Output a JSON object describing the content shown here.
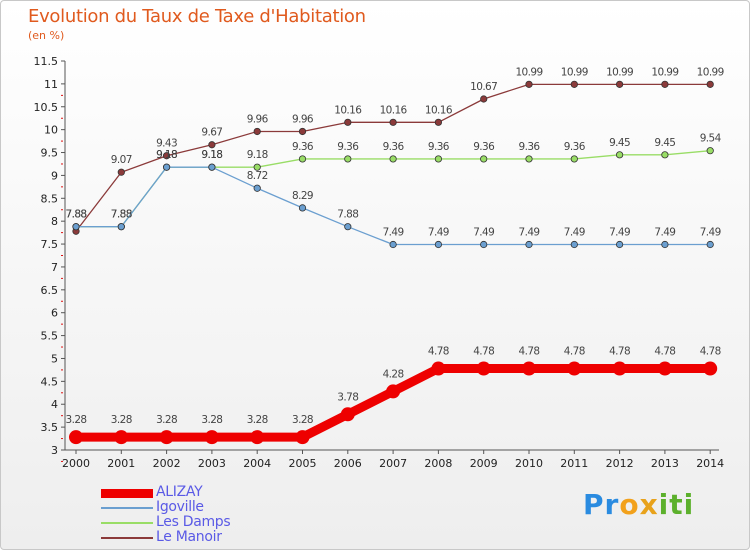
{
  "header": {
    "title": "Evolution du Taux de Taxe d'Habitation",
    "unit": "(en %)"
  },
  "logo": {
    "letters": [
      "P",
      "r",
      "o",
      "x",
      "i",
      "t",
      "i"
    ],
    "colors": [
      "#2a8be0",
      "#2a8be0",
      "#f2a11b",
      "#e8a21b",
      "#5cb02c",
      "#5cb02c",
      "#5cb02c"
    ]
  },
  "chart_data": {
    "type": "line",
    "title": "Evolution du Taux de Taxe d'Habitation",
    "ylabel": "(en %)",
    "xlabel": "",
    "x": [
      "2000",
      "2001",
      "2002",
      "2003",
      "2004",
      "2005",
      "2006",
      "2007",
      "2008",
      "2009",
      "2010",
      "2011",
      "2012",
      "2013",
      "2014"
    ],
    "ylim": [
      3,
      11.5
    ],
    "yticks": [
      "3",
      "3.5",
      "4",
      "4.5",
      "5",
      "5.5",
      "6",
      "6.5",
      "7",
      "7.5",
      "8",
      "8.5",
      "9",
      "9.5",
      "10",
      "10.5",
      "11",
      "11.5"
    ],
    "grid": false,
    "legend": "bottom-left",
    "series": [
      {
        "name": "ALIZAY",
        "color": "#ee0000",
        "bold": true,
        "values": [
          3.28,
          3.28,
          3.28,
          3.28,
          3.28,
          3.28,
          3.78,
          4.28,
          4.78,
          4.78,
          4.78,
          4.78,
          4.78,
          4.78,
          4.78
        ],
        "labels": [
          "3.28",
          "3.28",
          "3.28",
          "3.28",
          "3.28",
          "3.28",
          "3.78",
          "4.28",
          "4.78",
          "4.78",
          "4.78",
          "4.78",
          "4.78",
          "4.78",
          "4.78"
        ]
      },
      {
        "name": "Igoville",
        "color": "#6b9fd0",
        "bold": false,
        "values": [
          7.88,
          7.88,
          9.18,
          9.18,
          8.72,
          8.29,
          7.88,
          7.49,
          7.49,
          7.49,
          7.49,
          7.49,
          7.49,
          7.49,
          7.49
        ],
        "labels": [
          "7.88",
          "7.88",
          "9.18",
          "9.18",
          "8.72",
          "8.29",
          "7.88",
          "7.49",
          "7.49",
          "7.49",
          "7.49",
          "7.49",
          "7.49",
          "7.49",
          "7.49"
        ]
      },
      {
        "name": "Les Damps",
        "color": "#99dd66",
        "bold": false,
        "values": [
          7.88,
          7.88,
          9.18,
          9.18,
          9.18,
          9.36,
          9.36,
          9.36,
          9.36,
          9.36,
          9.36,
          9.36,
          9.45,
          9.45,
          9.54
        ],
        "labels": [
          "7.88",
          "7.88",
          "9.18",
          "9.18",
          "9.18",
          "9.36",
          "9.36",
          "9.36",
          "9.36",
          "9.36",
          "9.36",
          "9.36",
          "9.45",
          "9.45",
          "9.54"
        ]
      },
      {
        "name": "Le Manoir",
        "color": "#8b3a3a",
        "bold": false,
        "values": [
          7.78,
          9.07,
          9.43,
          9.67,
          9.96,
          9.96,
          10.16,
          10.16,
          10.16,
          10.67,
          10.99,
          10.99,
          10.99,
          10.99,
          10.99
        ],
        "labels": [
          "",
          "9.07",
          "9.43",
          "9.67",
          "9.96",
          "9.96",
          "10.16",
          "10.16",
          "10.16",
          "10.67",
          "10.99",
          "10.99",
          "10.99",
          "10.99",
          "10.99"
        ]
      }
    ]
  }
}
